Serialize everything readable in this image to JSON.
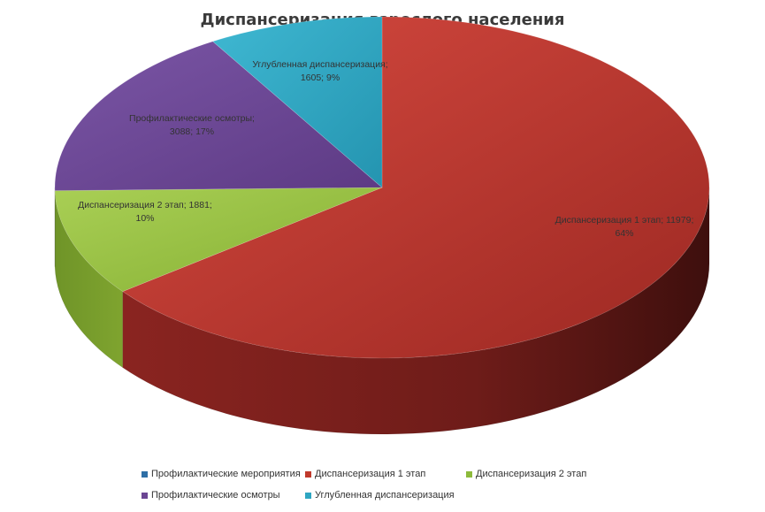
{
  "chart_data": {
    "type": "pie",
    "title": "Диспансеризация взрослого населения",
    "slices": [
      {
        "name": "Профилактические мероприятия",
        "value": 0,
        "percent": 0,
        "color": "#2e6fa6"
      },
      {
        "name": "Диспансеризация 1 этап",
        "value": 11979,
        "percent": 64,
        "color": "#c0392b",
        "label_lines": [
          "Диспансеризация 1 этап; 11979;",
          "64%"
        ]
      },
      {
        "name": "Диспансеризация 2 этап",
        "value": 1881,
        "percent": 10,
        "color": "#8dba3b",
        "label_lines": [
          "Диспансеризация 2 этап; 1881;",
          "10%"
        ]
      },
      {
        "name": "Профилактические осмотры",
        "value": 3088,
        "percent": 17,
        "color": "#6b4693",
        "label_lines": [
          "Профилактические осмотры;",
          "3088; 17%"
        ]
      },
      {
        "name": "Углубленная диспансеризация",
        "value": 1605,
        "percent": 9,
        "color": "#2ea6c2",
        "label_lines": [
          "Углубленная диспансеризация;",
          "1605; 9%"
        ]
      }
    ],
    "legend_position": "bottom"
  }
}
